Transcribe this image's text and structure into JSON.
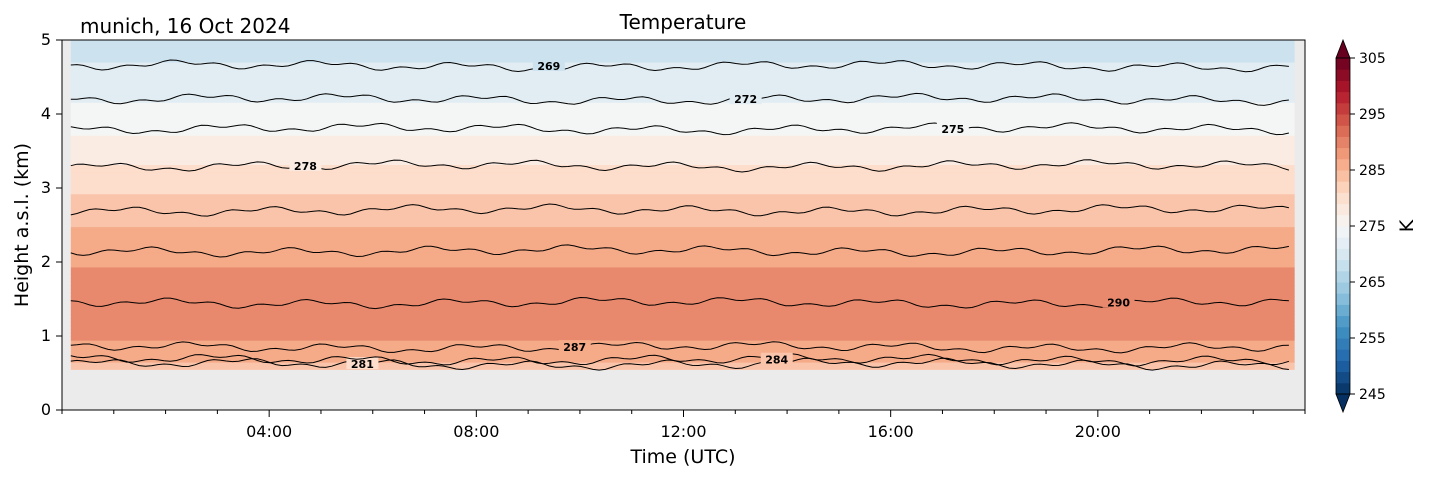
{
  "chart_data": {
    "type": "heatmap",
    "title": "Temperature",
    "subtitle": "munich, 16 Oct 2024",
    "xlabel": "Time (UTC)",
    "ylabel": "Height a.s.l. (km)",
    "x_range_hours": [
      0,
      24
    ],
    "x_ticks": [
      {
        "hour": 4,
        "label": "04:00"
      },
      {
        "hour": 8,
        "label": "08:00"
      },
      {
        "hour": 12,
        "label": "12:00"
      },
      {
        "hour": 16,
        "label": "16:00"
      },
      {
        "hour": 20,
        "label": "20:00"
      }
    ],
    "ylim": [
      0,
      5
    ],
    "y_ticks": [
      0,
      1,
      2,
      3,
      4,
      5
    ],
    "data_bottom_km": 0.55,
    "colorbar": {
      "label": "K",
      "range": [
        245,
        305
      ],
      "ticks": [
        245,
        255,
        265,
        275,
        285,
        295,
        305
      ],
      "extend": "both"
    },
    "temperature_profile": [
      {
        "height_km": 0.55,
        "K": 283.8
      },
      {
        "height_km": 0.8,
        "K": 286.4
      },
      {
        "height_km": 1.0,
        "K": 288.8
      },
      {
        "height_km": 1.3,
        "K": 289.8
      },
      {
        "height_km": 1.6,
        "K": 289.4
      },
      {
        "height_km": 2.0,
        "K": 287.7
      },
      {
        "height_km": 2.5,
        "K": 284.8
      },
      {
        "height_km": 3.0,
        "K": 281.3
      },
      {
        "height_km": 3.5,
        "K": 277.8
      },
      {
        "height_km": 4.0,
        "K": 274.0
      },
      {
        "height_km": 4.5,
        "K": 271.1
      },
      {
        "height_km": 5.0,
        "K": 268.3
      }
    ],
    "contours": [
      {
        "level": 281,
        "height_km": 0.62,
        "label_hour": 5.8
      },
      {
        "level": 284,
        "height_km": 0.68,
        "label_hour": 13.8
      },
      {
        "level": 287,
        "height_km": 0.85,
        "label_hour": 9.9
      },
      {
        "level": 290,
        "height_km": 1.45,
        "label_hour": 20.4
      },
      {
        "level": 287,
        "height_km": 2.15
      },
      {
        "level": 284,
        "height_km": 2.7
      },
      {
        "level": 278,
        "height_km": 3.3,
        "label_hour": 4.7
      },
      {
        "level": 275,
        "height_km": 3.8,
        "label_hour": 17.2
      },
      {
        "level": 272,
        "height_km": 4.2,
        "label_hour": 13.2
      },
      {
        "level": 269,
        "height_km": 4.65,
        "label_hour": 9.4
      }
    ],
    "grid": false
  }
}
